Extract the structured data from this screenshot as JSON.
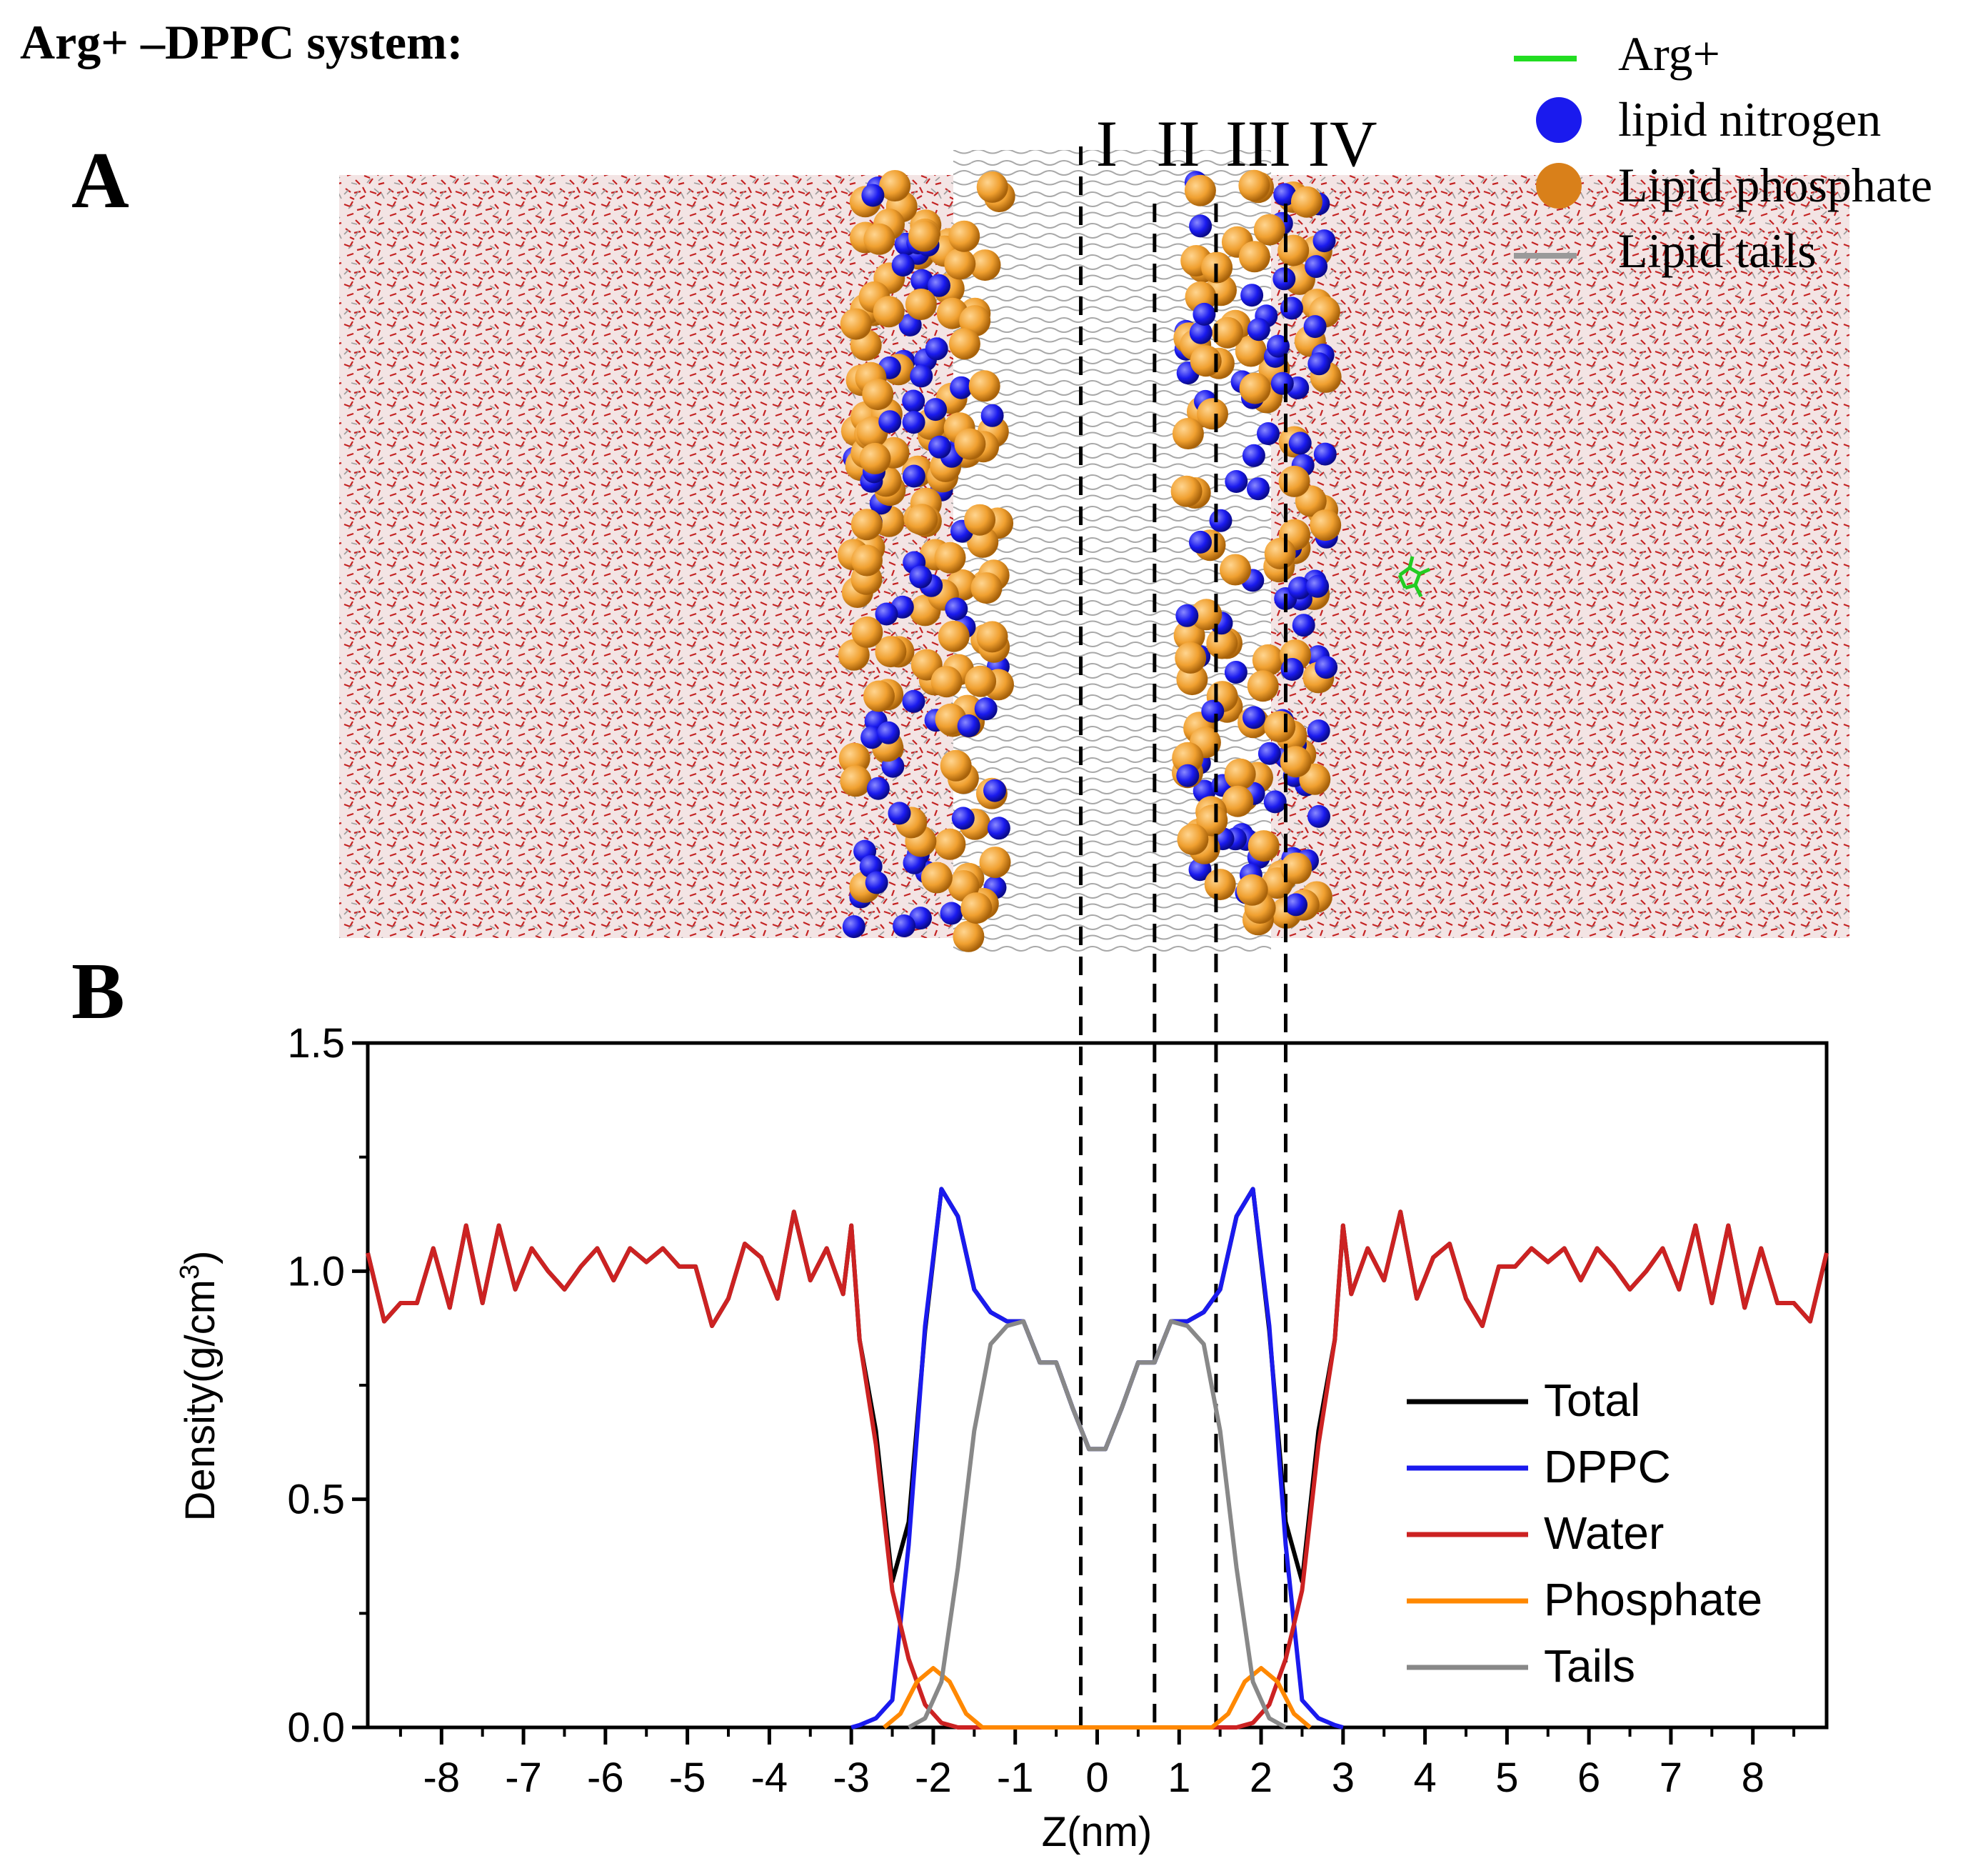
{
  "figure": {
    "title": "Arg+ –DPPC system:",
    "panel_a_label": "A",
    "panel_b_label": "B",
    "region_labels": [
      "I",
      "II",
      "III",
      "IV"
    ]
  },
  "snapshot_legend": [
    {
      "label": "Arg+",
      "marker": "line",
      "color": "#22dd22"
    },
    {
      "label": "lipid nitrogen",
      "marker": "sphere",
      "color": "#1a1aee"
    },
    {
      "label": "Lipid phosphate",
      "marker": "sphere",
      "color": "#d9801a"
    },
    {
      "label": "Lipid tails",
      "marker": "line",
      "color": "#9a9a9a"
    }
  ],
  "colors": {
    "water_red": "#cc2222",
    "nitrogen_blue": "#1a1aee",
    "phosphate_orange": "#f0a030",
    "tails_gray": "#9a9a9a",
    "arg_green": "#22cc22"
  },
  "chart_data": {
    "type": "line",
    "xlabel": "Z(nm)",
    "ylabel": "Density(g/cm",
    "ylabel_sup": "3",
    "ylabel_close": ")",
    "xlim": [
      -8.9,
      8.9
    ],
    "ylim": [
      0.0,
      1.5
    ],
    "xticks": [
      -8,
      -7,
      -6,
      -5,
      -4,
      -3,
      -2,
      -1,
      0,
      1,
      2,
      3,
      4,
      5,
      6,
      7,
      8
    ],
    "xtick_labels": [
      "-8",
      "-7",
      "-6",
      "-5",
      "-4",
      "-3",
      "-2",
      "-1",
      "0",
      "1",
      "2",
      "3",
      "4",
      "5",
      "6",
      "7",
      "8"
    ],
    "yticks": [
      0.0,
      0.5,
      1.0,
      1.5
    ],
    "ytick_labels": [
      "0.0",
      "0.5",
      "1.0",
      "1.5"
    ],
    "region_boundaries_z": [
      -0.2,
      0.7,
      1.45,
      2.3
    ],
    "legend_position": "lower-right",
    "series": [
      {
        "name": "Total",
        "color": "#000000",
        "x": [
          -8.9,
          -8.7,
          -8.5,
          -8.3,
          -8.1,
          -7.9,
          -7.7,
          -7.5,
          -7.3,
          -7.1,
          -6.9,
          -6.7,
          -6.5,
          -6.3,
          -6.1,
          -5.9,
          -5.7,
          -5.5,
          -5.3,
          -5.1,
          -4.9,
          -4.7,
          -4.5,
          -4.3,
          -4.1,
          -3.9,
          -3.7,
          -3.5,
          -3.3,
          -3.1,
          -3.0,
          -2.9,
          -2.7,
          -2.5,
          -2.3,
          -2.1,
          -1.9,
          -1.7,
          -1.5,
          -1.3,
          -1.1,
          -0.9,
          -0.7,
          -0.5,
          -0.3,
          -0.1,
          0.1,
          0.3,
          0.5,
          0.7,
          0.9,
          1.1,
          1.3,
          1.5,
          1.7,
          1.9,
          2.1,
          2.3,
          2.5,
          2.7,
          2.9,
          3.0,
          3.1,
          3.3,
          3.5,
          3.7,
          3.9,
          4.1,
          4.3,
          4.5,
          4.7,
          4.9,
          5.1,
          5.3,
          5.5,
          5.7,
          5.9,
          6.1,
          6.3,
          6.5,
          6.7,
          6.9,
          7.1,
          7.3,
          7.5,
          7.7,
          7.9,
          8.1,
          8.3,
          8.5,
          8.7,
          8.9
        ],
        "y": [
          1.04,
          0.89,
          0.93,
          0.93,
          1.05,
          0.92,
          1.1,
          0.93,
          1.1,
          0.96,
          1.05,
          1.0,
          0.96,
          1.01,
          1.05,
          0.98,
          1.05,
          1.02,
          1.05,
          1.01,
          1.01,
          0.88,
          0.94,
          1.06,
          1.03,
          0.94,
          1.13,
          0.98,
          1.05,
          0.95,
          1.1,
          0.85,
          0.65,
          0.32,
          0.45,
          0.87,
          1.18,
          1.12,
          0.96,
          0.91,
          0.89,
          0.89,
          0.8,
          0.8,
          0.7,
          0.61,
          0.61,
          0.7,
          0.8,
          0.8,
          0.89,
          0.89,
          0.91,
          0.96,
          1.12,
          1.18,
          0.87,
          0.45,
          0.32,
          0.65,
          0.85,
          1.1,
          0.95,
          1.05,
          0.98,
          1.13,
          0.94,
          1.03,
          1.06,
          0.94,
          0.88,
          1.01,
          1.01,
          1.05,
          1.02,
          1.05,
          0.98,
          1.05,
          1.01,
          0.96,
          1.0,
          1.05,
          0.96,
          1.1,
          0.93,
          1.1,
          0.92,
          1.05,
          0.93,
          0.93,
          0.89,
          1.04
        ]
      },
      {
        "name": "DPPC",
        "color": "#1a1aee",
        "x": [
          -3.0,
          -2.9,
          -2.7,
          -2.5,
          -2.3,
          -2.1,
          -1.9,
          -1.7,
          -1.5,
          -1.3,
          -1.1,
          -0.9,
          -0.7,
          -0.5,
          -0.3,
          -0.1,
          0.1,
          0.3,
          0.5,
          0.7,
          0.9,
          1.1,
          1.3,
          1.5,
          1.7,
          1.9,
          2.1,
          2.3,
          2.5,
          2.7,
          2.9,
          3.0
        ],
        "y": [
          0.0,
          0.005,
          0.02,
          0.06,
          0.4,
          0.88,
          1.18,
          1.12,
          0.96,
          0.91,
          0.89,
          0.89,
          0.8,
          0.8,
          0.7,
          0.61,
          0.61,
          0.7,
          0.8,
          0.8,
          0.89,
          0.89,
          0.91,
          0.96,
          1.12,
          1.18,
          0.88,
          0.4,
          0.06,
          0.02,
          0.005,
          0.0
        ]
      },
      {
        "name": "Water",
        "color": "#cc2222",
        "x": [
          -8.9,
          -8.7,
          -8.5,
          -8.3,
          -8.1,
          -7.9,
          -7.7,
          -7.5,
          -7.3,
          -7.1,
          -6.9,
          -6.7,
          -6.5,
          -6.3,
          -6.1,
          -5.9,
          -5.7,
          -5.5,
          -5.3,
          -5.1,
          -4.9,
          -4.7,
          -4.5,
          -4.3,
          -4.1,
          -3.9,
          -3.7,
          -3.5,
          -3.3,
          -3.1,
          -3.0,
          -2.9,
          -2.7,
          -2.5,
          -2.3,
          -2.1,
          -1.9,
          -1.7,
          -1.5,
          1.5,
          1.7,
          1.9,
          2.1,
          2.3,
          2.5,
          2.7,
          2.9,
          3.0,
          3.1,
          3.3,
          3.5,
          3.7,
          3.9,
          4.1,
          4.3,
          4.5,
          4.7,
          4.9,
          5.1,
          5.3,
          5.5,
          5.7,
          5.9,
          6.1,
          6.3,
          6.5,
          6.7,
          6.9,
          7.1,
          7.3,
          7.5,
          7.7,
          7.9,
          8.1,
          8.3,
          8.5,
          8.7,
          8.9
        ],
        "y": [
          1.04,
          0.89,
          0.93,
          0.93,
          1.05,
          0.92,
          1.1,
          0.93,
          1.1,
          0.96,
          1.05,
          1.0,
          0.96,
          1.01,
          1.05,
          0.98,
          1.05,
          1.02,
          1.05,
          1.01,
          1.01,
          0.88,
          0.94,
          1.06,
          1.03,
          0.94,
          1.13,
          0.98,
          1.05,
          0.95,
          1.1,
          0.85,
          0.62,
          0.3,
          0.15,
          0.05,
          0.01,
          0.0,
          0.0,
          0.0,
          0.0,
          0.01,
          0.05,
          0.15,
          0.3,
          0.62,
          0.85,
          1.1,
          0.95,
          1.05,
          0.98,
          1.13,
          0.94,
          1.03,
          1.06,
          0.94,
          0.88,
          1.01,
          1.01,
          1.05,
          1.02,
          1.05,
          0.98,
          1.05,
          1.01,
          0.96,
          1.0,
          1.05,
          0.96,
          1.1,
          0.93,
          1.1,
          0.92,
          1.05,
          0.93,
          0.93,
          0.89,
          1.04
        ]
      },
      {
        "name": "Phosphate",
        "color": "#ff8800",
        "x": [
          -2.6,
          -2.4,
          -2.2,
          -2.0,
          -1.8,
          -1.6,
          -1.4,
          1.4,
          1.6,
          1.8,
          2.0,
          2.2,
          2.4,
          2.6
        ],
        "y": [
          0.0,
          0.03,
          0.1,
          0.13,
          0.1,
          0.03,
          0.0,
          0.0,
          0.03,
          0.1,
          0.13,
          0.1,
          0.03,
          0.0
        ]
      },
      {
        "name": "Tails",
        "color": "#888888",
        "x": [
          -2.3,
          -2.1,
          -1.9,
          -1.7,
          -1.5,
          -1.3,
          -1.1,
          -0.9,
          -0.7,
          -0.5,
          -0.3,
          -0.1,
          0.1,
          0.3,
          0.5,
          0.7,
          0.9,
          1.1,
          1.3,
          1.5,
          1.7,
          1.9,
          2.1,
          2.3
        ],
        "y": [
          0.0,
          0.02,
          0.1,
          0.35,
          0.65,
          0.84,
          0.88,
          0.89,
          0.8,
          0.8,
          0.7,
          0.61,
          0.61,
          0.7,
          0.8,
          0.8,
          0.89,
          0.88,
          0.84,
          0.65,
          0.35,
          0.1,
          0.02,
          0.0
        ]
      }
    ]
  }
}
